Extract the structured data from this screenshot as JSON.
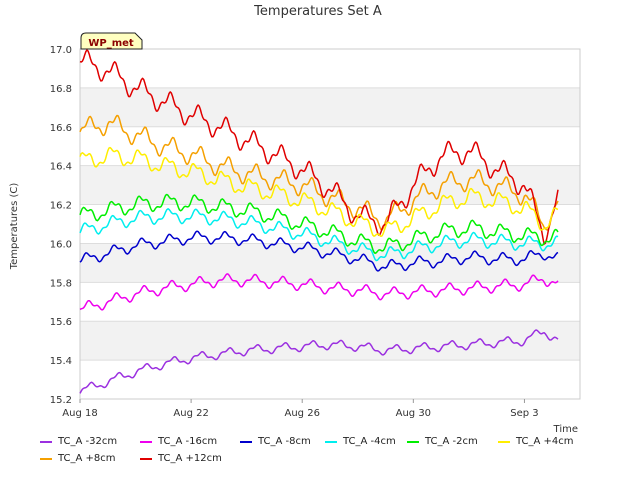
{
  "chart_data": {
    "type": "line",
    "title": "Temperatures Set A",
    "ylabel": "Temperatures (C)",
    "xlabel": "Time",
    "badge": "WP_met",
    "x_ticks": [
      "Aug 18",
      "Aug 22",
      "Aug 26",
      "Aug 30",
      "Sep 3"
    ],
    "y_ticks": [
      "15.2",
      "15.4",
      "15.6",
      "15.8",
      "16.0",
      "16.2",
      "16.4",
      "16.6",
      "16.8",
      "17.0"
    ],
    "ylim": [
      15.2,
      17.0
    ],
    "x_range_days": [
      0,
      18
    ],
    "x_tick_days": [
      0,
      4,
      8,
      12,
      16
    ],
    "grid": "horizontal bands",
    "legend_placement": "bottom",
    "series": [
      {
        "name": "TC_A -32cm",
        "color": "#9b30e0",
        "points": [
          [
            0,
            15.24
          ],
          [
            1,
            15.29
          ],
          [
            2,
            15.34
          ],
          [
            3,
            15.38
          ],
          [
            4,
            15.41
          ],
          [
            5,
            15.43
          ],
          [
            6,
            15.45
          ],
          [
            7,
            15.46
          ],
          [
            8,
            15.47
          ],
          [
            9,
            15.48
          ],
          [
            10,
            15.47
          ],
          [
            11,
            15.45
          ],
          [
            12,
            15.46
          ],
          [
            13,
            15.47
          ],
          [
            14,
            15.48
          ],
          [
            15,
            15.49
          ],
          [
            16,
            15.5
          ],
          [
            16.7,
            15.55
          ],
          [
            17.2,
            15.5
          ]
        ]
      },
      {
        "name": "TC_A +8cm",
        "color": "#f5a000",
        "points": [
          [
            0,
            16.58
          ],
          [
            1,
            16.62
          ],
          [
            2,
            16.56
          ],
          [
            3,
            16.5
          ],
          [
            4,
            16.46
          ],
          [
            5,
            16.4
          ],
          [
            6,
            16.36
          ],
          [
            7,
            16.33
          ],
          [
            8,
            16.3
          ],
          [
            9,
            16.24
          ],
          [
            10,
            16.18
          ],
          [
            11,
            16.12
          ],
          [
            12,
            16.22
          ],
          [
            13,
            16.3
          ],
          [
            14,
            16.33
          ],
          [
            15,
            16.3
          ],
          [
            16,
            16.25
          ],
          [
            16.7,
            16.1
          ],
          [
            17.2,
            16.2
          ]
        ]
      },
      {
        "name": "TC_A -16cm",
        "color": "#ee00ee",
        "points": [
          [
            0,
            15.66
          ],
          [
            1,
            15.7
          ],
          [
            2,
            15.74
          ],
          [
            3,
            15.77
          ],
          [
            4,
            15.79
          ],
          [
            5,
            15.81
          ],
          [
            6,
            15.81
          ],
          [
            7,
            15.8
          ],
          [
            8,
            15.79
          ],
          [
            9,
            15.77
          ],
          [
            10,
            15.76
          ],
          [
            11,
            15.74
          ],
          [
            12,
            15.75
          ],
          [
            13,
            15.76
          ],
          [
            14,
            15.77
          ],
          [
            15,
            15.78
          ],
          [
            16,
            15.79
          ],
          [
            16.7,
            15.82
          ],
          [
            17.2,
            15.79
          ]
        ]
      },
      {
        "name": "TC_A +12cm",
        "color": "#e00000",
        "points": [
          [
            0,
            16.94
          ],
          [
            1,
            16.89
          ],
          [
            2,
            16.8
          ],
          [
            3,
            16.73
          ],
          [
            4,
            16.66
          ],
          [
            5,
            16.6
          ],
          [
            6,
            16.53
          ],
          [
            7,
            16.46
          ],
          [
            8,
            16.38
          ],
          [
            9,
            16.28
          ],
          [
            10,
            16.14
          ],
          [
            11,
            16.1
          ],
          [
            12,
            16.3
          ],
          [
            13,
            16.45
          ],
          [
            14,
            16.48
          ],
          [
            15,
            16.38
          ],
          [
            16,
            16.3
          ],
          [
            16.7,
            16.05
          ],
          [
            17.2,
            16.22
          ]
        ]
      },
      {
        "name": "TC_A -8cm",
        "color": "#0000cc",
        "points": [
          [
            0,
            15.91
          ],
          [
            1,
            15.95
          ],
          [
            2,
            15.99
          ],
          [
            3,
            16.01
          ],
          [
            4,
            16.03
          ],
          [
            5,
            16.03
          ],
          [
            6,
            16.02
          ],
          [
            7,
            16.0
          ],
          [
            8,
            15.98
          ],
          [
            9,
            15.95
          ],
          [
            10,
            15.92
          ],
          [
            11,
            15.88
          ],
          [
            12,
            15.9
          ],
          [
            13,
            15.91
          ],
          [
            14,
            15.93
          ],
          [
            15,
            15.92
          ],
          [
            16,
            15.92
          ],
          [
            16.7,
            15.95
          ],
          [
            17.2,
            15.92
          ]
        ]
      },
      {
        "name": "TC_A -4cm",
        "color": "#00eeee",
        "points": [
          [
            0,
            16.06
          ],
          [
            1,
            16.1
          ],
          [
            2,
            16.13
          ],
          [
            3,
            16.14
          ],
          [
            4,
            16.14
          ],
          [
            5,
            16.13
          ],
          [
            6,
            16.11
          ],
          [
            7,
            16.08
          ],
          [
            8,
            16.05
          ],
          [
            9,
            16.01
          ],
          [
            10,
            15.97
          ],
          [
            11,
            15.94
          ],
          [
            12,
            15.97
          ],
          [
            13,
            16.0
          ],
          [
            14,
            16.02
          ],
          [
            15,
            16.01
          ],
          [
            16,
            16.0
          ],
          [
            16.7,
            16.0
          ],
          [
            17.2,
            16.0
          ]
        ]
      },
      {
        "name": "TC_A -2cm",
        "color": "#00ee00",
        "points": [
          [
            0,
            16.14
          ],
          [
            1,
            16.17
          ],
          [
            2,
            16.2
          ],
          [
            3,
            16.21
          ],
          [
            4,
            16.21
          ],
          [
            5,
            16.19
          ],
          [
            6,
            16.17
          ],
          [
            7,
            16.14
          ],
          [
            8,
            16.1
          ],
          [
            9,
            16.06
          ],
          [
            10,
            16.01
          ],
          [
            11,
            15.98
          ],
          [
            12,
            16.02
          ],
          [
            13,
            16.06
          ],
          [
            14,
            16.08
          ],
          [
            15,
            16.06
          ],
          [
            16,
            16.04
          ],
          [
            16.7,
            16.03
          ],
          [
            17.2,
            16.03
          ]
        ]
      },
      {
        "name": "TC_A +4cm",
        "color": "#ffee00",
        "points": [
          [
            0,
            16.42
          ],
          [
            1,
            16.45
          ],
          [
            2,
            16.44
          ],
          [
            3,
            16.4
          ],
          [
            4,
            16.37
          ],
          [
            5,
            16.33
          ],
          [
            6,
            16.29
          ],
          [
            7,
            16.26
          ],
          [
            8,
            16.22
          ],
          [
            9,
            16.17
          ],
          [
            10,
            16.11
          ],
          [
            11,
            16.06
          ],
          [
            12,
            16.13
          ],
          [
            13,
            16.2
          ],
          [
            14,
            16.24
          ],
          [
            15,
            16.22
          ],
          [
            16,
            16.18
          ],
          [
            16.7,
            16.1
          ],
          [
            17.2,
            16.15
          ]
        ]
      }
    ]
  }
}
